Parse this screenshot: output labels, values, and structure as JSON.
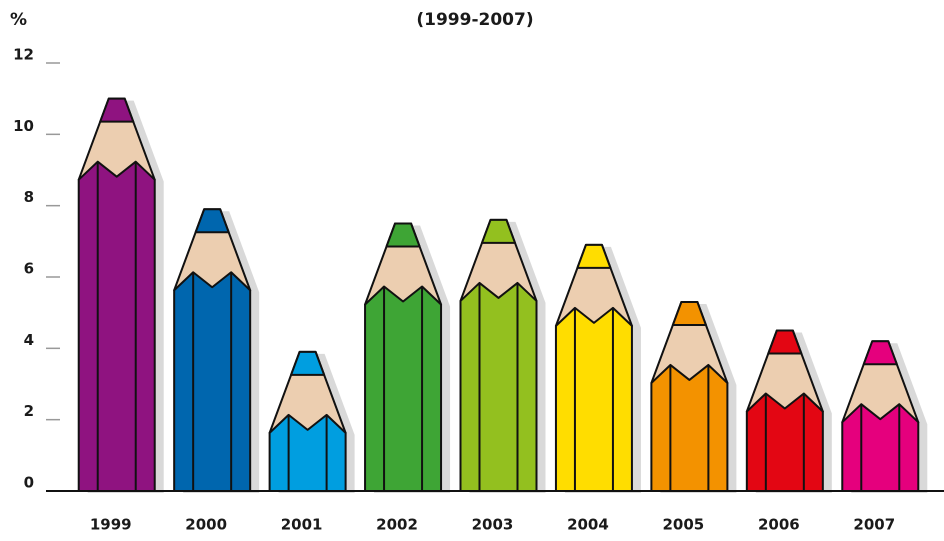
{
  "chart_data": {
    "type": "pencil-bar",
    "title": "(1999-2007)",
    "y_label": "%",
    "categories": [
      "1999",
      "2000",
      "2001",
      "2002",
      "2003",
      "2004",
      "2005",
      "2006",
      "2007"
    ],
    "values": [
      11,
      7.9,
      3.9,
      7.5,
      7.6,
      6.9,
      5.3,
      4.5,
      4.2
    ],
    "colors": [
      "#8f1380",
      "#0066ae",
      "#009ee0",
      "#3ea535",
      "#93c01f",
      "#ffdd00",
      "#f39200",
      "#e30613",
      "#e5007d"
    ],
    "ylim": [
      0,
      12
    ],
    "yticks": [
      0,
      2,
      4,
      6,
      8,
      10,
      12
    ]
  }
}
